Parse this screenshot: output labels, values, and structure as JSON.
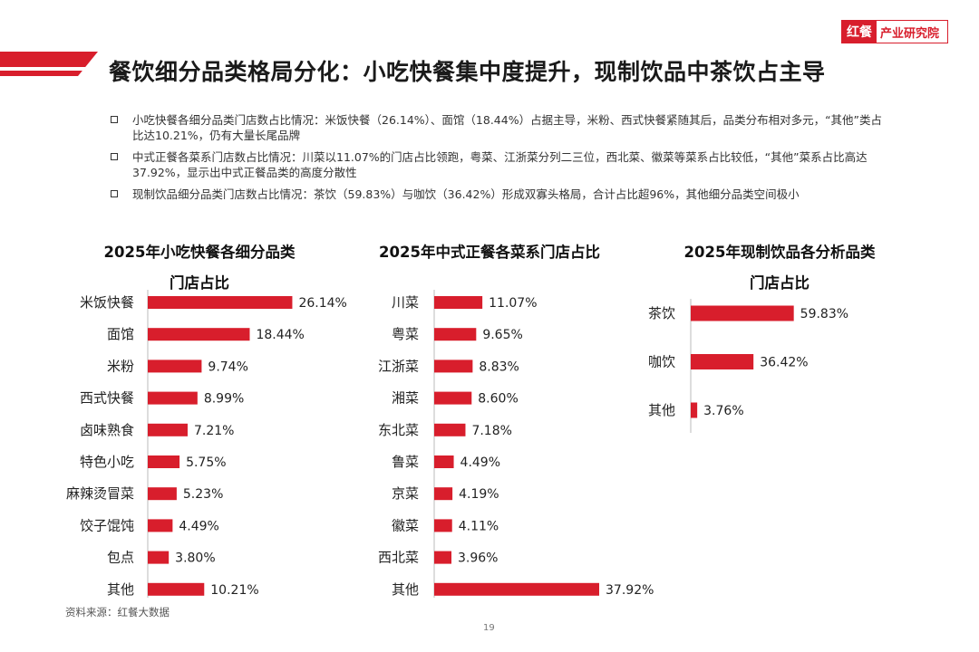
{
  "brand": {
    "logo_red": "红餐",
    "logo_text": "产业研究院",
    "watermark": "红餐 产业研究院"
  },
  "header": {
    "title": "餐饮细分品类格局分化：小吃快餐集中度提升，现制饮品中茶饮占主导"
  },
  "bullets": [
    "小吃快餐各细分品类门店数占比情况：米饭快餐（26.14%）、面馆（18.44%）占据主导，米粉、西式快餐紧随其后，品类分布相对多元，“其他”类占比达10.21%，仍有大量长尾品牌",
    "中式正餐各菜系门店数占比情况：川菜以11.07%的门店占比领跑，粤菜、江浙菜分列二三位，西北菜、徽菜等菜系占比较低，“其他”菜系占比高达37.92%，显示出中式正餐品类的高度分散性",
    "现制饮品细分品类门店数占比情况：茶饮（59.83%）与咖饮（36.42%）形成双寡头格局，合计占比超96%，其他细分品类空间极小"
  ],
  "chart_titles": [
    {
      "line1": "2025年小吃快餐各细分品类",
      "line2": "门店占比"
    },
    {
      "line1": "2025年中式正餐各菜系门店占比",
      "line2": ""
    },
    {
      "line1": "2025年现制饮品各分析品类",
      "line2": "门店占比"
    }
  ],
  "chart_data": [
    {
      "type": "bar",
      "orientation": "horizontal",
      "title": "2025年小吃快餐各细分品类门店占比",
      "categories": [
        "米饭快餐",
        "面馆",
        "米粉",
        "西式快餐",
        "卤味熟食",
        "特色小吃",
        "麻辣烫冒菜",
        "饺子馄饨",
        "包点",
        "其他"
      ],
      "values": [
        26.14,
        18.44,
        9.74,
        8.99,
        7.21,
        5.75,
        5.23,
        4.49,
        3.8,
        10.21
      ],
      "labels": [
        "26.14%",
        "18.44%",
        "9.74%",
        "8.99%",
        "7.21%",
        "5.75%",
        "5.23%",
        "4.49%",
        "3.80%",
        "10.21%"
      ],
      "color": "#d81e2c"
    },
    {
      "type": "bar",
      "orientation": "horizontal",
      "title": "2025年中式正餐各菜系门店占比",
      "categories": [
        "川菜",
        "粤菜",
        "江浙菜",
        "湘菜",
        "东北菜",
        "鲁菜",
        "京菜",
        "徽菜",
        "西北菜",
        "其他"
      ],
      "values": [
        11.07,
        9.65,
        8.83,
        8.6,
        7.18,
        4.49,
        4.19,
        4.11,
        3.96,
        37.92
      ],
      "labels": [
        "11.07%",
        "9.65%",
        "8.83%",
        "8.60%",
        "7.18%",
        "4.49%",
        "4.19%",
        "4.11%",
        "3.96%",
        "37.92%"
      ],
      "color": "#d81e2c"
    },
    {
      "type": "bar",
      "orientation": "horizontal",
      "title": "2025年现制饮品各分析品类门店占比",
      "categories": [
        "茶饮",
        "咖饮",
        "其他"
      ],
      "values": [
        59.83,
        36.42,
        3.76
      ],
      "labels": [
        "59.83%",
        "36.42%",
        "3.76%"
      ],
      "color": "#d81e2c"
    }
  ],
  "footer": {
    "source": "资料来源：红餐大数据",
    "page": "19"
  }
}
